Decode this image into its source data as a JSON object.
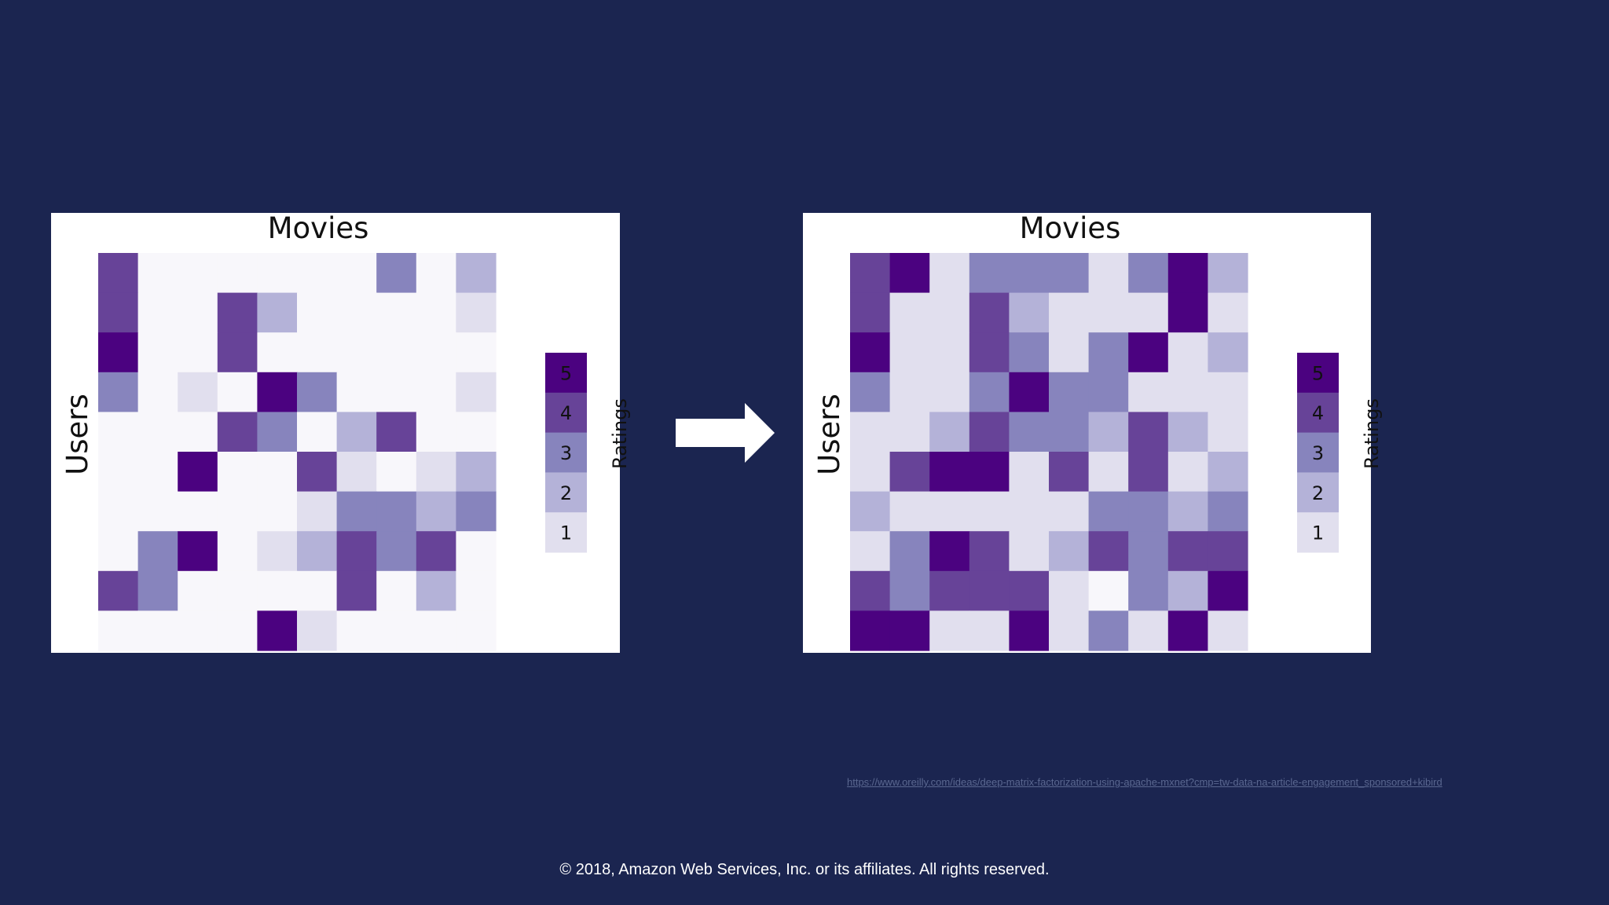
{
  "chart_data": [
    {
      "type": "heatmap",
      "title": "Movies",
      "ylabel": "Users",
      "legend_title": "Ratings",
      "legend_levels": [
        "5",
        "4",
        "3",
        "2",
        "1"
      ],
      "grid_rows": 10,
      "grid_cols": 10,
      "colors": {
        "0": "#f8f7fb",
        "1": "#e1dfee",
        "2": "#b4b2d8",
        "3": "#8784bd",
        "4": "#674398",
        "5": "#4b0280"
      },
      "values": [
        [
          4,
          0,
          0,
          0,
          0,
          0,
          0,
          3,
          0,
          2
        ],
        [
          4,
          0,
          0,
          4,
          2,
          0,
          0,
          0,
          0,
          1
        ],
        [
          5,
          0,
          0,
          4,
          0,
          0,
          0,
          0,
          0,
          0
        ],
        [
          3,
          0,
          1,
          0,
          5,
          3,
          0,
          0,
          0,
          1
        ],
        [
          0,
          0,
          0,
          4,
          3,
          0,
          2,
          4,
          0,
          0
        ],
        [
          0,
          0,
          5,
          0,
          0,
          4,
          1,
          0,
          1,
          2
        ],
        [
          0,
          0,
          0,
          0,
          0,
          1,
          3,
          3,
          2,
          3
        ],
        [
          0,
          3,
          5,
          0,
          1,
          2,
          4,
          3,
          4,
          0
        ],
        [
          4,
          3,
          0,
          0,
          0,
          0,
          4,
          0,
          2,
          0
        ],
        [
          0,
          0,
          0,
          0,
          5,
          1,
          0,
          0,
          0,
          0
        ]
      ]
    },
    {
      "type": "heatmap",
      "title": "Movies",
      "ylabel": "Users",
      "legend_title": "Ratings",
      "legend_levels": [
        "5",
        "4",
        "3",
        "2",
        "1"
      ],
      "grid_rows": 10,
      "grid_cols": 10,
      "colors": {
        "0": "#f8f7fb",
        "1": "#e1dfee",
        "2": "#b4b2d8",
        "3": "#8784bd",
        "4": "#674398",
        "5": "#4b0280"
      },
      "values": [
        [
          4,
          5,
          1,
          3,
          3,
          3,
          1,
          3,
          5,
          2
        ],
        [
          4,
          1,
          1,
          4,
          2,
          1,
          1,
          1,
          5,
          1
        ],
        [
          5,
          1,
          1,
          4,
          3,
          1,
          3,
          5,
          1,
          2
        ],
        [
          3,
          1,
          1,
          3,
          5,
          3,
          3,
          1,
          1,
          1
        ],
        [
          1,
          1,
          2,
          4,
          3,
          3,
          2,
          4,
          2,
          1
        ],
        [
          1,
          4,
          5,
          5,
          1,
          4,
          1,
          4,
          1,
          2
        ],
        [
          2,
          1,
          1,
          1,
          1,
          1,
          3,
          3,
          2,
          3
        ],
        [
          1,
          3,
          5,
          4,
          1,
          2,
          4,
          3,
          4,
          4
        ],
        [
          4,
          3,
          4,
          4,
          4,
          1,
          0,
          3,
          2,
          5
        ],
        [
          5,
          5,
          1,
          1,
          5,
          1,
          3,
          1,
          5,
          1
        ]
      ]
    }
  ],
  "source_url": "https://www.oreilly.com/ideas/deep-matrix-factorization-using-apache-mxnet?cmp=tw-data-na-article-engagement_sponsored+kibird",
  "copyright": "© 2018, Amazon Web Services, Inc. or its affiliates. All rights reserved."
}
